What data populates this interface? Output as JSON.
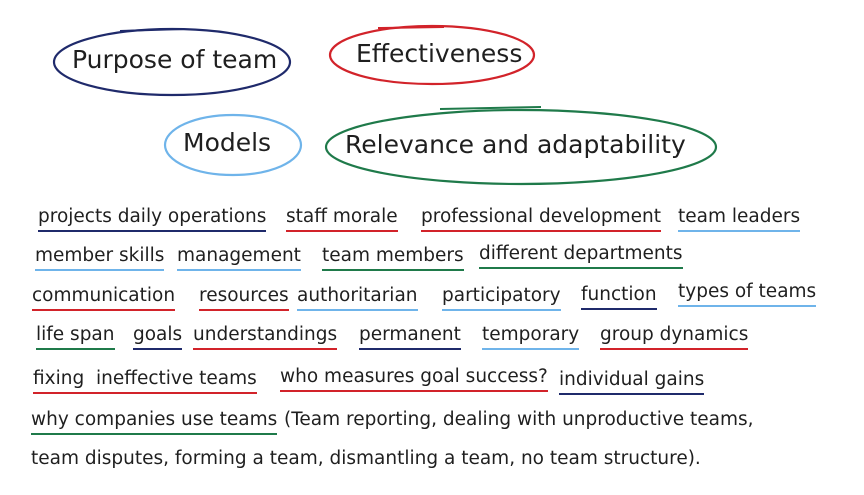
{
  "bubbles": {
    "purpose": "Purpose of team",
    "effectiveness": "Effectiveness",
    "models": "Models",
    "relevance": "Relevance and adaptability"
  },
  "keywords": {
    "projects_daily_operations": "projects daily operations",
    "staff_morale": "staff morale",
    "professional_development": "professional development",
    "team_leaders": "team leaders",
    "member_skills": "member skills",
    "management": "management",
    "team_members": "team members",
    "different_departments": "different departments",
    "communication": "communication",
    "resources": "resources",
    "authoritarian": "authoritarian",
    "participatory": "participatory",
    "function": "function",
    "types_of_teams": "types of teams",
    "life_span": "life span",
    "goals": "goals",
    "understandings": "understandings",
    "permanent": "permanent",
    "temporary": "temporary",
    "group_dynamics": "group dynamics",
    "fixing_ineffective_teams": "fixing  ineffective teams",
    "who_measures": "who measures goal success?",
    "individual_gains": "individual gains",
    "why_companies": "why companies use teams"
  },
  "notes": {
    "line1": "(Team reporting, dealing with unproductive teams,",
    "line2": "team disputes, forming a team, dismantling a team, no team structure)."
  },
  "colors": {
    "navy": "#1f2a6b",
    "red": "#d2232a",
    "light_blue": "#6fb4ea",
    "green": "#1f7a4a"
  }
}
